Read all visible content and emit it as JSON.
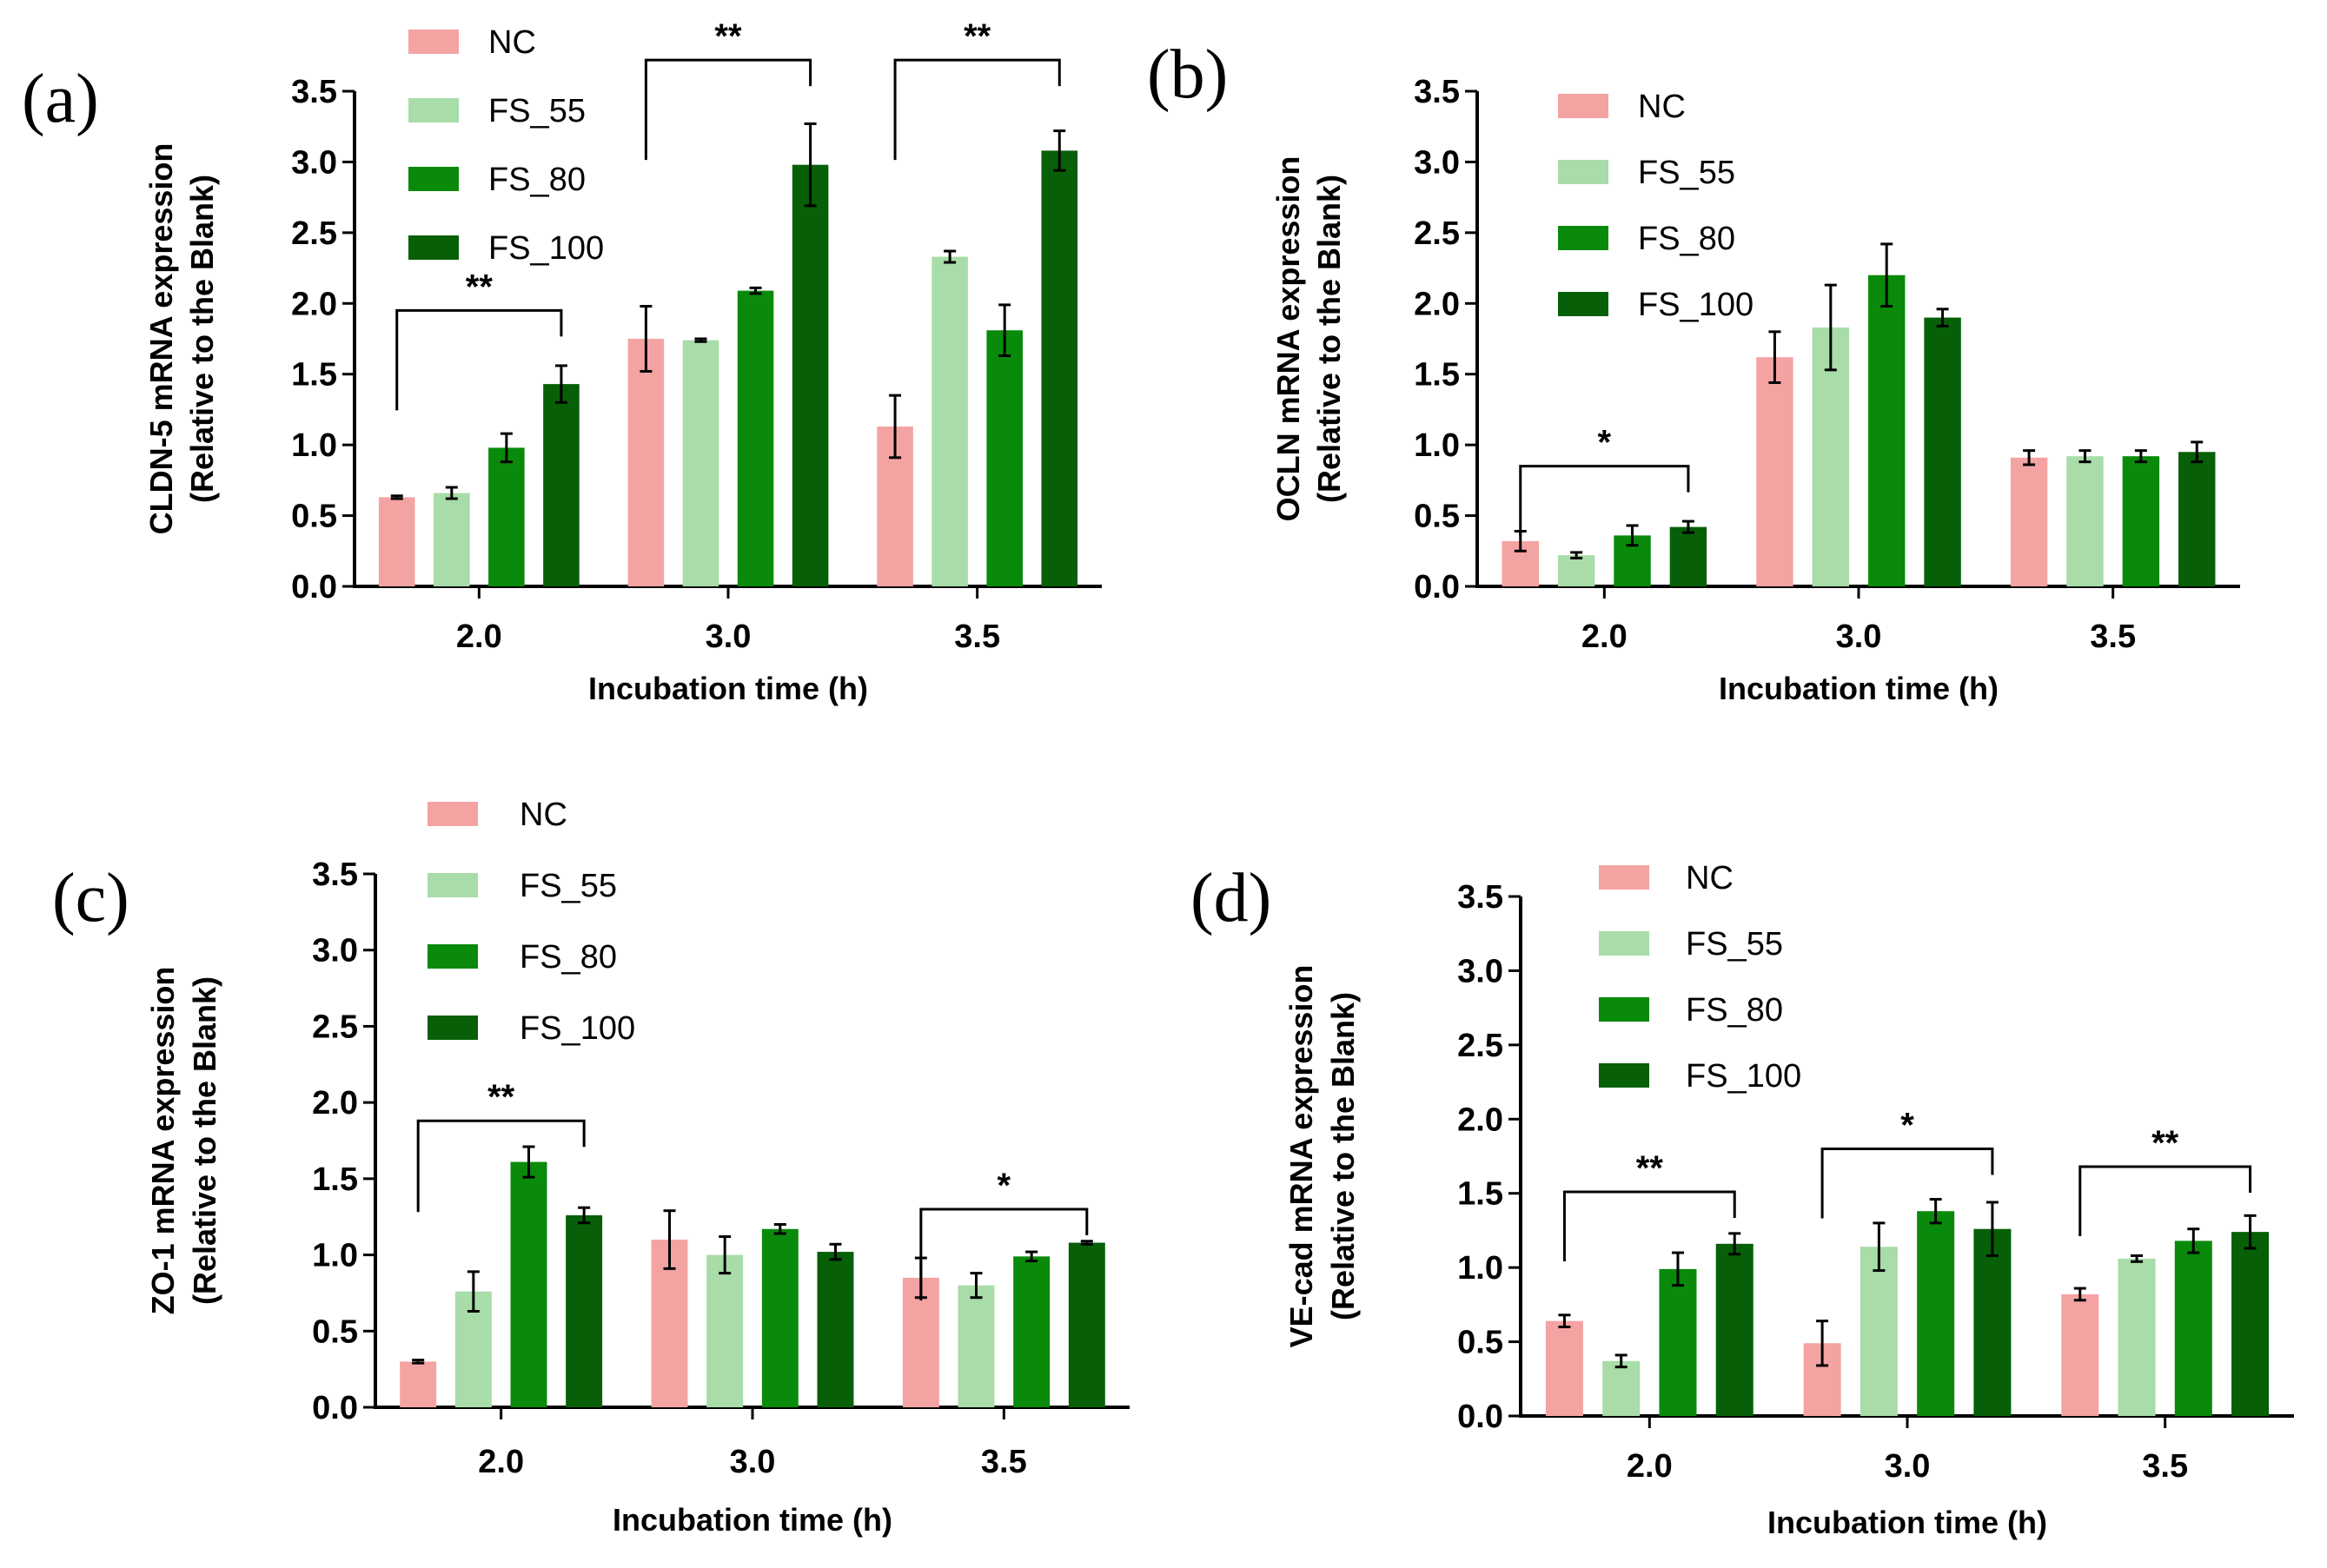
{
  "colors": {
    "NC": "#f4a3a3",
    "FS_55": "#a8dca8",
    "FS_80": "#0a8a0a",
    "FS_100": "#075f07",
    "axis": "#000000"
  },
  "chart_data": [
    {
      "type": "bar",
      "panel_label": "(a)",
      "xlabel": "Incubation time (h)",
      "ylabel_line1": "CLDN-5 mRNA expression",
      "ylabel_line2": "(Relative to the Blank)",
      "categories": [
        "2.0",
        "3.0",
        "3.5"
      ],
      "ylim": [
        0,
        3.5
      ],
      "yticks": [
        "0.0",
        "0.5",
        "1.0",
        "1.5",
        "2.0",
        "2.5",
        "3.0",
        "3.5"
      ],
      "legend": [
        "NC",
        "FS_55",
        "FS_80",
        "FS_100"
      ],
      "series": [
        {
          "name": "NC",
          "values": [
            0.63,
            1.75,
            1.13
          ],
          "errors": [
            0.01,
            0.23,
            0.22
          ]
        },
        {
          "name": "FS_55",
          "values": [
            0.66,
            1.74,
            2.33
          ],
          "errors": [
            0.04,
            0.01,
            0.04
          ]
        },
        {
          "name": "FS_80",
          "values": [
            0.98,
            2.09,
            1.81
          ],
          "errors": [
            0.1,
            0.02,
            0.18
          ]
        },
        {
          "name": "FS_100",
          "values": [
            1.43,
            2.98,
            3.08
          ],
          "errors": [
            0.13,
            0.29,
            0.14
          ]
        }
      ],
      "significance": [
        {
          "category": "2.0",
          "label": "**",
          "level": 1.95
        },
        {
          "category": "3.0",
          "label": "**",
          "level": 3.72
        },
        {
          "category": "3.5",
          "label": "**",
          "level": 3.72
        }
      ]
    },
    {
      "type": "bar",
      "panel_label": "(b)",
      "xlabel": "Incubation time (h)",
      "ylabel_line1": "OCLN mRNA expression",
      "ylabel_line2": "(Relative to the Blank)",
      "categories": [
        "2.0",
        "3.0",
        "3.5"
      ],
      "ylim": [
        0,
        3.5
      ],
      "yticks": [
        "0.0",
        "0.5",
        "1.0",
        "1.5",
        "2.0",
        "2.5",
        "3.0",
        "3.5"
      ],
      "legend": [
        "NC",
        "FS_55",
        "FS_80",
        "FS_100"
      ],
      "series": [
        {
          "name": "NC",
          "values": [
            0.32,
            1.62,
            0.91
          ],
          "errors": [
            0.07,
            0.18,
            0.05
          ]
        },
        {
          "name": "FS_55",
          "values": [
            0.22,
            1.83,
            0.92
          ],
          "errors": [
            0.02,
            0.3,
            0.04
          ]
        },
        {
          "name": "FS_80",
          "values": [
            0.36,
            2.2,
            0.92
          ],
          "errors": [
            0.07,
            0.22,
            0.04
          ]
        },
        {
          "name": "FS_100",
          "values": [
            0.42,
            1.9,
            0.95
          ],
          "errors": [
            0.04,
            0.06,
            0.07
          ]
        }
      ],
      "significance": [
        {
          "category": "2.0",
          "label": "*",
          "level": 0.85
        }
      ]
    },
    {
      "type": "bar",
      "panel_label": "(c)",
      "xlabel": "Incubation time (h)",
      "ylabel_line1": "ZO-1 mRNA expression",
      "ylabel_line2": "(Relative to the Blank)",
      "categories": [
        "2.0",
        "3.0",
        "3.5"
      ],
      "ylim": [
        0,
        3.5
      ],
      "yticks": [
        "0.0",
        "0.5",
        "1.0",
        "1.5",
        "2.0",
        "2.5",
        "3.0",
        "3.5"
      ],
      "legend": [
        "NC",
        "FS_55",
        "FS_80",
        "FS_100"
      ],
      "series": [
        {
          "name": "NC",
          "values": [
            0.3,
            1.1,
            0.85
          ],
          "errors": [
            0.01,
            0.19,
            0.13
          ]
        },
        {
          "name": "FS_55",
          "values": [
            0.76,
            1.0,
            0.8
          ],
          "errors": [
            0.13,
            0.12,
            0.08
          ]
        },
        {
          "name": "FS_80",
          "values": [
            1.61,
            1.17,
            0.99
          ],
          "errors": [
            0.1,
            0.03,
            0.03
          ]
        },
        {
          "name": "FS_100",
          "values": [
            1.26,
            1.02,
            1.08
          ],
          "errors": [
            0.05,
            0.05,
            0.01
          ]
        }
      ],
      "significance": [
        {
          "category": "2.0",
          "label": "**",
          "level": 1.88
        },
        {
          "category": "3.5",
          "label": "*",
          "level": 1.3
        }
      ]
    },
    {
      "type": "bar",
      "panel_label": "(d)",
      "xlabel": "Incubation time (h)",
      "ylabel_line1": "VE-cad mRNA expression",
      "ylabel_line2": "(Relative to the Blank)",
      "categories": [
        "2.0",
        "3.0",
        "3.5"
      ],
      "ylim": [
        0,
        3.5
      ],
      "yticks": [
        "0.0",
        "0.5",
        "1.0",
        "1.5",
        "2.0",
        "2.5",
        "3.0",
        "3.5"
      ],
      "legend": [
        "NC",
        "FS_55",
        "FS_80",
        "FS_100"
      ],
      "series": [
        {
          "name": "NC",
          "values": [
            0.64,
            0.49,
            0.82
          ],
          "errors": [
            0.04,
            0.15,
            0.04
          ]
        },
        {
          "name": "FS_55",
          "values": [
            0.37,
            1.14,
            1.06
          ],
          "errors": [
            0.04,
            0.16,
            0.02
          ]
        },
        {
          "name": "FS_80",
          "values": [
            0.99,
            1.38,
            1.18
          ],
          "errors": [
            0.11,
            0.08,
            0.08
          ]
        },
        {
          "name": "FS_100",
          "values": [
            1.16,
            1.26,
            1.24
          ],
          "errors": [
            0.07,
            0.18,
            0.11
          ]
        }
      ],
      "significance": [
        {
          "category": "2.0",
          "label": "**",
          "level": 1.51
        },
        {
          "category": "3.0",
          "label": "*",
          "level": 1.8
        },
        {
          "category": "3.5",
          "label": "**",
          "level": 1.68
        }
      ]
    }
  ]
}
